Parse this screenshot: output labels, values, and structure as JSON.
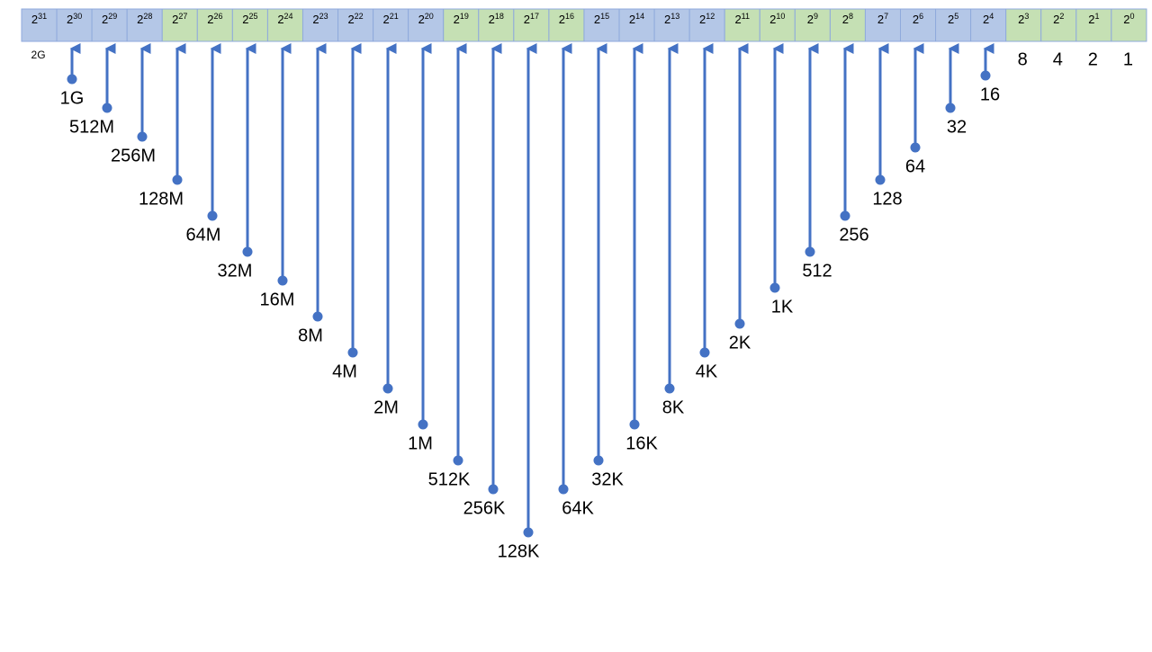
{
  "group_colors": [
    "#b4c7e7",
    "#c5e0b4"
  ],
  "arrow_color": "#4472c4",
  "cells": [
    {
      "base": "2",
      "exp": "31",
      "label": "2G"
    },
    {
      "base": "2",
      "exp": "30",
      "label": "1G"
    },
    {
      "base": "2",
      "exp": "29",
      "label": "512M"
    },
    {
      "base": "2",
      "exp": "28",
      "label": "256M"
    },
    {
      "base": "2",
      "exp": "27",
      "label": "128M"
    },
    {
      "base": "2",
      "exp": "26",
      "label": "64M"
    },
    {
      "base": "2",
      "exp": "25",
      "label": "32M"
    },
    {
      "base": "2",
      "exp": "24",
      "label": "16M"
    },
    {
      "base": "2",
      "exp": "23",
      "label": "8M"
    },
    {
      "base": "2",
      "exp": "22",
      "label": "4M"
    },
    {
      "base": "2",
      "exp": "21",
      "label": "2M"
    },
    {
      "base": "2",
      "exp": "20",
      "label": "1M"
    },
    {
      "base": "2",
      "exp": "19",
      "label": "512K"
    },
    {
      "base": "2",
      "exp": "18",
      "label": "256K"
    },
    {
      "base": "2",
      "exp": "17",
      "label": "128K"
    },
    {
      "base": "2",
      "exp": "16",
      "label": "64K"
    },
    {
      "base": "2",
      "exp": "15",
      "label": "32K"
    },
    {
      "base": "2",
      "exp": "14",
      "label": "16K"
    },
    {
      "base": "2",
      "exp": "13",
      "label": "8K"
    },
    {
      "base": "2",
      "exp": "12",
      "label": "4K"
    },
    {
      "base": "2",
      "exp": "11",
      "label": "2K"
    },
    {
      "base": "2",
      "exp": "10",
      "label": "1K"
    },
    {
      "base": "2",
      "exp": "9",
      "label": "512"
    },
    {
      "base": "2",
      "exp": "8",
      "label": "256"
    },
    {
      "base": "2",
      "exp": "7",
      "label": "128"
    },
    {
      "base": "2",
      "exp": "6",
      "label": "64"
    },
    {
      "base": "2",
      "exp": "5",
      "label": "32"
    },
    {
      "base": "2",
      "exp": "4",
      "label": "16"
    },
    {
      "base": "2",
      "exp": "3",
      "label": "8"
    },
    {
      "base": "2",
      "exp": "2",
      "label": "4"
    },
    {
      "base": "2",
      "exp": "1",
      "label": "2"
    },
    {
      "base": "2",
      "exp": "0",
      "label": "1"
    }
  ]
}
